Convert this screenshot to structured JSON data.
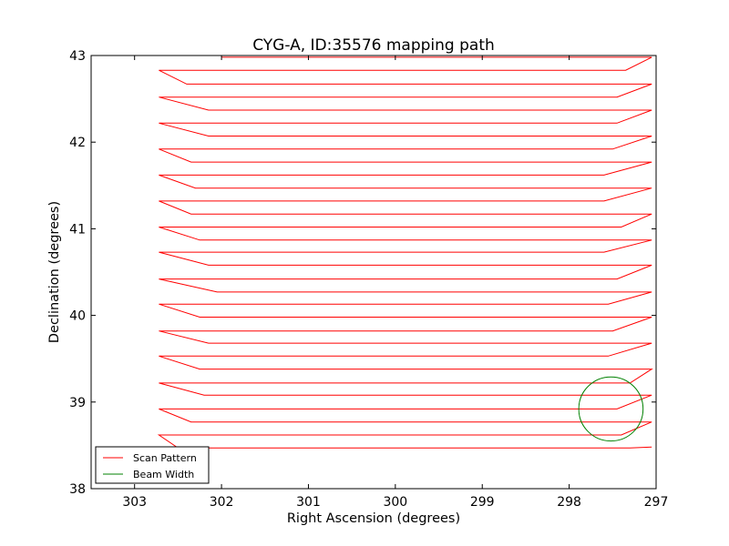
{
  "chart_data": {
    "type": "line",
    "title": "CYG-A, ID:35576 mapping path",
    "xlabel": "Right Ascension (degrees)",
    "ylabel": "Declination (degrees)",
    "xlim": [
      303.5,
      297.0
    ],
    "ylim": [
      38.0,
      43.0
    ],
    "x_inverted": true,
    "xticks": [
      303,
      302,
      301,
      300,
      299,
      298,
      297
    ],
    "yticks": [
      38,
      39,
      40,
      41,
      42,
      43
    ],
    "grid": false,
    "legend_position": "lower-left",
    "series": [
      {
        "name": "Scan Pattern",
        "color": "#ff0000",
        "x": [
          297.05,
          297.3,
          302.5,
          302.72,
          297.4,
          297.05,
          302.35,
          302.72,
          297.45,
          297.05,
          302.2,
          302.72,
          297.3,
          297.05,
          302.25,
          302.72,
          297.55,
          297.05,
          302.15,
          302.72,
          297.5,
          297.05,
          302.25,
          302.72,
          297.55,
          297.05,
          302.05,
          302.72,
          297.45,
          297.05,
          302.15,
          302.72,
          297.6,
          297.05,
          302.25,
          302.72,
          297.4,
          297.05,
          302.35,
          302.72,
          297.6,
          297.05,
          302.3,
          302.72,
          297.6,
          297.05,
          302.35,
          302.72,
          297.5,
          297.05,
          302.15,
          302.72,
          297.45,
          297.05,
          302.15,
          302.72,
          297.45,
          297.05,
          302.4,
          302.72,
          297.35,
          297.05,
          302.0
        ],
        "y": [
          38.48,
          38.47,
          38.47,
          38.62,
          38.62,
          38.77,
          38.77,
          38.92,
          38.92,
          39.08,
          39.08,
          39.22,
          39.22,
          39.38,
          39.38,
          39.53,
          39.53,
          39.68,
          39.68,
          39.82,
          39.82,
          39.98,
          39.98,
          40.13,
          40.13,
          40.27,
          40.27,
          40.42,
          40.42,
          40.58,
          40.58,
          40.73,
          40.73,
          40.87,
          40.87,
          41.02,
          41.02,
          41.17,
          41.17,
          41.32,
          41.32,
          41.47,
          41.47,
          41.62,
          41.62,
          41.77,
          41.77,
          41.92,
          41.92,
          42.07,
          42.07,
          42.22,
          42.22,
          42.37,
          42.37,
          42.52,
          42.52,
          42.67,
          42.67,
          42.83,
          42.83,
          42.98,
          42.98
        ]
      },
      {
        "name": "Beam Width",
        "color": "#008000",
        "shape": "circle",
        "center": [
          297.52,
          38.92
        ],
        "radius_deg": 0.37
      }
    ]
  }
}
